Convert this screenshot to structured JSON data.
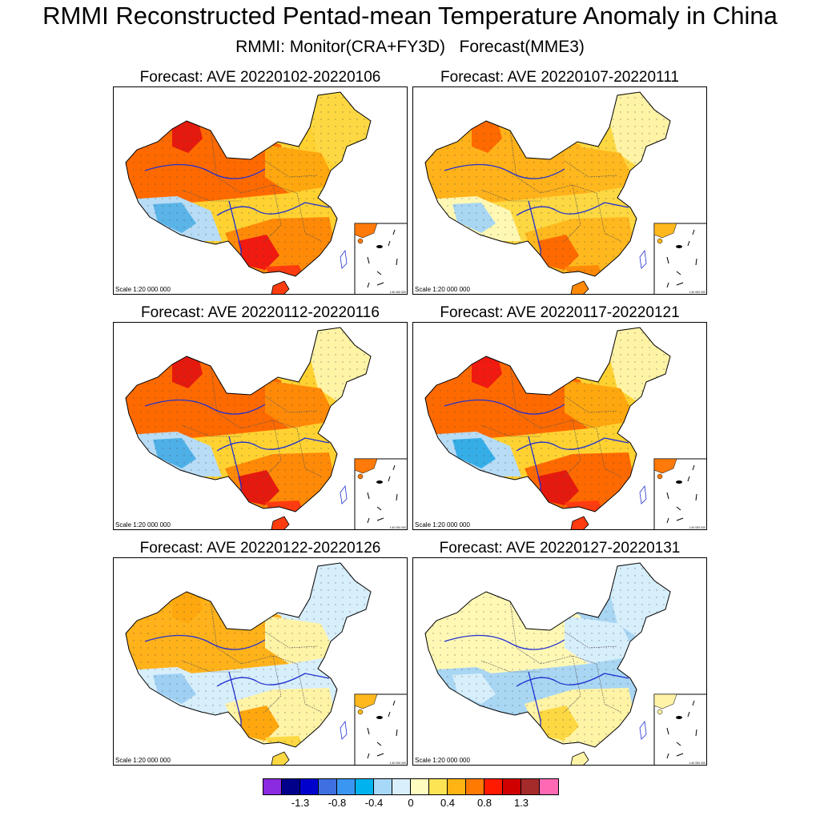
{
  "title": "RMMI Reconstructed Pentad-mean Temperature Anomaly in China",
  "subtitle": "RMMI: Monitor(CRA+FY3D)   Forecast(MME3)",
  "scale_text": "Scale 1:20 000 000",
  "inset_scale_text": "1:40 000 000",
  "panels": [
    {
      "title": "Forecast: AVE 20220102-20220106",
      "colors": {
        "nw": "#ff6a00",
        "xj": "#e51a0f",
        "tib": "#5ab4e8",
        "tibE": "#b8dcf5",
        "ne": "#fdd842",
        "n": "#ffa70e",
        "c": "#ffd232",
        "s": "#ff8a08",
        "sw": "#f01a10",
        "hn": "#ff3c10",
        "inset": "#ff7a0a"
      }
    },
    {
      "title": "Forecast: AVE 20220107-20220111",
      "colors": {
        "nw": "#ffb21a",
        "xj": "#ff6a00",
        "tib": "#a9d6f3",
        "tibE": "#fff8b5",
        "ne": "#fff3a6",
        "n": "#ffb81e",
        "c": "#fdd842",
        "s": "#ffb81e",
        "sw": "#ff6a00",
        "hn": "#ff8a08",
        "inset": "#ffb81e"
      }
    },
    {
      "title": "Forecast: AVE 20220112-20220116",
      "colors": {
        "nw": "#ff6a00",
        "xj": "#e51a0f",
        "tib": "#4fb0e8",
        "tibE": "#b8dcf5",
        "ne": "#fff3a6",
        "n": "#ff8a08",
        "c": "#ffd232",
        "s": "#ff8a08",
        "sw": "#e51a0f",
        "hn": "#ff3c10",
        "inset": "#ff7a0a"
      }
    },
    {
      "title": "Forecast: AVE 20220117-20220121",
      "colors": {
        "nw": "#ff6a00",
        "xj": "#f01a10",
        "tib": "#35aee8",
        "tibE": "#b8dcf5",
        "ne": "#fff3a6",
        "n": "#ffa70e",
        "c": "#ffd232",
        "s": "#ff6a00",
        "sw": "#e51a0f",
        "hn": "#ff3c10",
        "inset": "#ff7a0a"
      }
    },
    {
      "title": "Forecast: AVE 20220122-20220126",
      "colors": {
        "nw": "#ffb21a",
        "xj": "#ffa70e",
        "tib": "#9fd0f3",
        "tibE": "#d7eefb",
        "ne": "#d7eefb",
        "n": "#fff3a6",
        "c": "#d7eefb",
        "s": "#fff3a6",
        "sw": "#ffa70e",
        "hn": "#fdd842",
        "inset": "#ffb81e"
      }
    },
    {
      "title": "Forecast: AVE 20220127-20220131",
      "colors": {
        "nw": "#fff8b5",
        "xj": "#fff8b5",
        "tib": "#d7eefb",
        "tibE": "#a9d6f3",
        "ne": "#d7eefb",
        "n": "#d7eefb",
        "c": "#a9d6f3",
        "s": "#fff3a6",
        "sw": "#fdd842",
        "hn": "#fff3a6",
        "inset": "#fff3a6"
      }
    }
  ],
  "colorbar": {
    "colors": [
      "#8a2be2",
      "#00008b",
      "#0000cd",
      "#3f6fe0",
      "#3a96f0",
      "#00b2ee",
      "#a8d8f8",
      "#d9effc",
      "#fffcc0",
      "#fde455",
      "#ffb414",
      "#ff7a00",
      "#ff1a00",
      "#d00000",
      "#a52a2a",
      "#ff69b4"
    ],
    "labels": [
      "-1.3",
      "-0.8",
      "-0.4",
      "0",
      "0.4",
      "0.8",
      "1.3"
    ]
  }
}
